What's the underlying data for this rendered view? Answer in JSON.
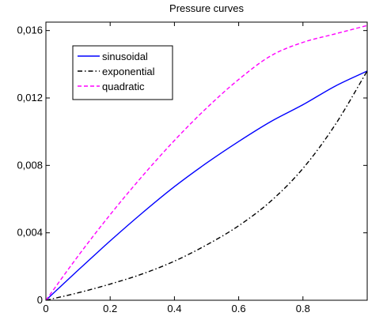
{
  "chart_data": {
    "type": "line",
    "title": "Pressure curves",
    "xlabel": "",
    "ylabel": "",
    "xlim": [
      0,
      1
    ],
    "ylim": [
      0,
      0.0165
    ],
    "x_ticks": [
      0,
      0.2,
      0.4,
      0.6,
      0.8
    ],
    "x_tick_labels": [
      "0",
      "0.2",
      "0.4",
      "0.6",
      "0.8"
    ],
    "y_ticks": [
      0,
      0.004,
      0.008,
      0.012,
      0.016
    ],
    "y_tick_labels": [
      "0",
      "0,004",
      "0,008",
      "0,012",
      "0,016"
    ],
    "grid": false,
    "legend_position": "top-left",
    "series": [
      {
        "name": "sinusoidal",
        "color": "#0000ff",
        "style": "solid",
        "x": [
          0,
          0.1,
          0.2,
          0.3,
          0.4,
          0.5,
          0.6,
          0.7,
          0.8,
          0.9,
          1.0
        ],
        "values": [
          0,
          0.00178,
          0.00352,
          0.00518,
          0.00674,
          0.00814,
          0.00942,
          0.0106,
          0.0116,
          0.0127,
          0.0136
        ]
      },
      {
        "name": "exponential",
        "color": "#000000",
        "style": "dashdot",
        "x": [
          0,
          0.1,
          0.2,
          0.3,
          0.4,
          0.5,
          0.6,
          0.7,
          0.8,
          0.9,
          1.0
        ],
        "values": [
          0,
          0.00044,
          0.00096,
          0.00156,
          0.00232,
          0.00328,
          0.00442,
          0.00588,
          0.00782,
          0.0104,
          0.0136
        ]
      },
      {
        "name": "quadratic",
        "color": "#ff00ff",
        "style": "dashed",
        "x": [
          0,
          0.1,
          0.2,
          0.3,
          0.4,
          0.5,
          0.6,
          0.7,
          0.8,
          0.9,
          1.0
        ],
        "values": [
          0,
          0.00262,
          0.00508,
          0.00736,
          0.00948,
          0.0114,
          0.0131,
          0.0145,
          0.0153,
          0.0158,
          0.0163
        ]
      }
    ]
  }
}
